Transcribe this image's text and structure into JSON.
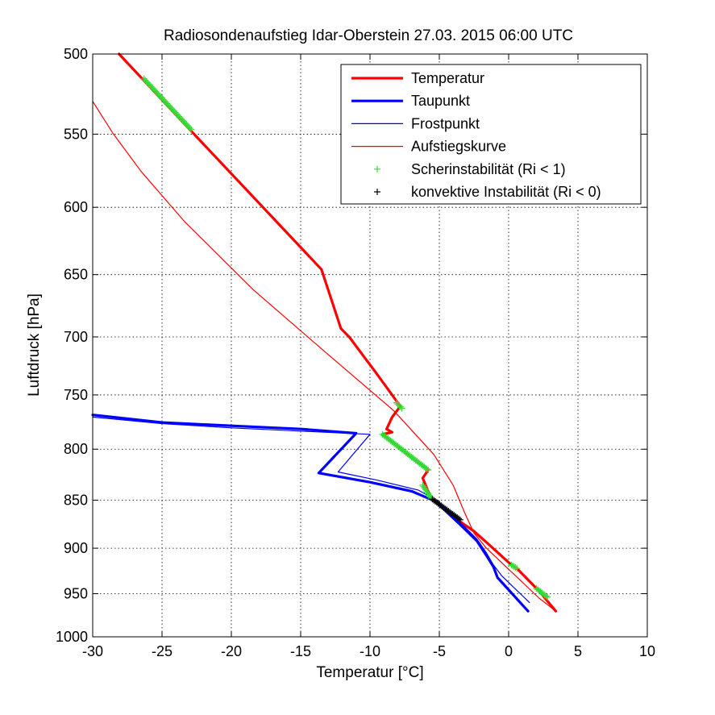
{
  "title": "Radiosondenaufstieg Idar-Oberstein 27.03. 2015 06:00 UTC",
  "chart_data": {
    "type": "line",
    "title": "Radiosondenaufstieg Idar-Oberstein 27.03. 2015 06:00 UTC",
    "xlabel": "Temperatur [°C]",
    "ylabel": "Luftdruck [hPa]",
    "xlim": [
      -30,
      10
    ],
    "ylim": [
      500,
      1000
    ],
    "y_scale": "log",
    "y_reversed": true,
    "grid": true,
    "legend_position": "top-right",
    "x_ticks": [
      -30,
      -25,
      -20,
      -15,
      -10,
      -5,
      0,
      5,
      10
    ],
    "x_tick_labels": [
      "-30",
      "-25",
      "-20",
      "-15",
      "-10",
      "-5",
      "0",
      "5",
      "10"
    ],
    "y_ticks": [
      500,
      550,
      600,
      650,
      700,
      750,
      800,
      850,
      900,
      950,
      1000
    ],
    "y_tick_labels": [
      "500",
      "550",
      "600",
      "650",
      "700",
      "750",
      "800",
      "850",
      "900",
      "950",
      "1000"
    ],
    "series": [
      {
        "name": "Temperatur",
        "color": "#ff0000",
        "style": "thick-line",
        "points": [
          [
            -28.1,
            500
          ],
          [
            -23,
            547
          ],
          [
            -13.5,
            646
          ],
          [
            -12.1,
            693
          ],
          [
            -11.5,
            700
          ],
          [
            -9.6,
            730
          ],
          [
            -8.0,
            757
          ],
          [
            -7.8,
            760
          ],
          [
            -8.4,
            770
          ],
          [
            -8.8,
            781
          ],
          [
            -8.4,
            784
          ],
          [
            -9.1,
            786
          ],
          [
            -7.3,
            805
          ],
          [
            -5.8,
            820
          ],
          [
            -6.2,
            828
          ],
          [
            -5.6,
            848
          ],
          [
            -5.0,
            855
          ],
          [
            -4.6,
            860
          ],
          [
            -4.0,
            866
          ],
          [
            -3.3,
            874
          ],
          [
            -2.5,
            882
          ],
          [
            -1.5,
            895
          ],
          [
            0.2,
            918
          ],
          [
            0.6,
            922
          ],
          [
            2.2,
            947
          ],
          [
            3.4,
            970
          ]
        ]
      },
      {
        "name": "Taupunkt",
        "color": "#0000ff",
        "style": "thick-line",
        "points": [
          [
            -30,
            768
          ],
          [
            -25,
            775
          ],
          [
            -20,
            778
          ],
          [
            -15,
            781
          ],
          [
            -11.0,
            785
          ],
          [
            -13.7,
            823
          ],
          [
            -10,
            832
          ],
          [
            -7,
            841
          ],
          [
            -5.3,
            851
          ],
          [
            -3.5,
            875
          ],
          [
            -2.3,
            892
          ],
          [
            -1.6,
            908
          ],
          [
            -1.1,
            920
          ],
          [
            -0.8,
            932
          ],
          [
            1.4,
            970
          ]
        ]
      },
      {
        "name": "Frostpunkt",
        "color": "#0000ff",
        "style": "thin-line",
        "points": [
          [
            -30,
            770
          ],
          [
            -25,
            776
          ],
          [
            -20,
            780
          ],
          [
            -15,
            783
          ],
          [
            -10.0,
            786
          ],
          [
            -12.3,
            822
          ],
          [
            -9.5,
            830
          ],
          [
            -6.5,
            840
          ],
          [
            -5.1,
            851
          ],
          [
            -3.4,
            874
          ],
          [
            -2.3,
            890
          ],
          [
            -1.6,
            905
          ],
          [
            -1.1,
            918
          ],
          [
            -0.5,
            930
          ],
          [
            1.5,
            960
          ]
        ]
      },
      {
        "name": "Aufstiegskurve",
        "color": "#ff0000",
        "style": "thin-line",
        "points": [
          [
            -30,
            529
          ],
          [
            -28.5,
            550
          ],
          [
            -26.5,
            575
          ],
          [
            -23.4,
            610
          ],
          [
            -18.4,
            662
          ],
          [
            -13.0,
            715
          ],
          [
            -8.3,
            764
          ],
          [
            -5.4,
            805
          ],
          [
            -4.0,
            835
          ],
          [
            -3.2,
            862
          ],
          [
            -2.5,
            884
          ],
          [
            -1.6,
            900
          ],
          [
            0.5,
            930
          ],
          [
            2.2,
            955
          ],
          [
            3.4,
            970
          ]
        ]
      },
      {
        "name": "Scherinstabilität (Ri < 1)",
        "color": "#33dd33",
        "style": "plus-markers",
        "segments": [
          [
            [
              -26.3,
              515
            ],
            [
              -22.9,
              547
            ]
          ],
          [
            [
              -8.1,
              757
            ],
            [
              -7.7,
              762
            ]
          ],
          [
            [
              -9.1,
              786
            ],
            [
              -5.8,
              820
            ]
          ],
          [
            [
              -6.2,
              835
            ],
            [
              -5.6,
              848
            ]
          ],
          [
            [
              0.2,
              918
            ],
            [
              0.6,
              922
            ]
          ],
          [
            [
              2.0,
              944
            ],
            [
              2.8,
              954
            ]
          ]
        ]
      },
      {
        "name": "konvektive Instabilität (Ri < 0)",
        "color": "#000000",
        "style": "plus-markers",
        "segments": [
          [
            [
              -5.5,
              849
            ],
            [
              -3.5,
              870
            ]
          ]
        ]
      }
    ]
  }
}
